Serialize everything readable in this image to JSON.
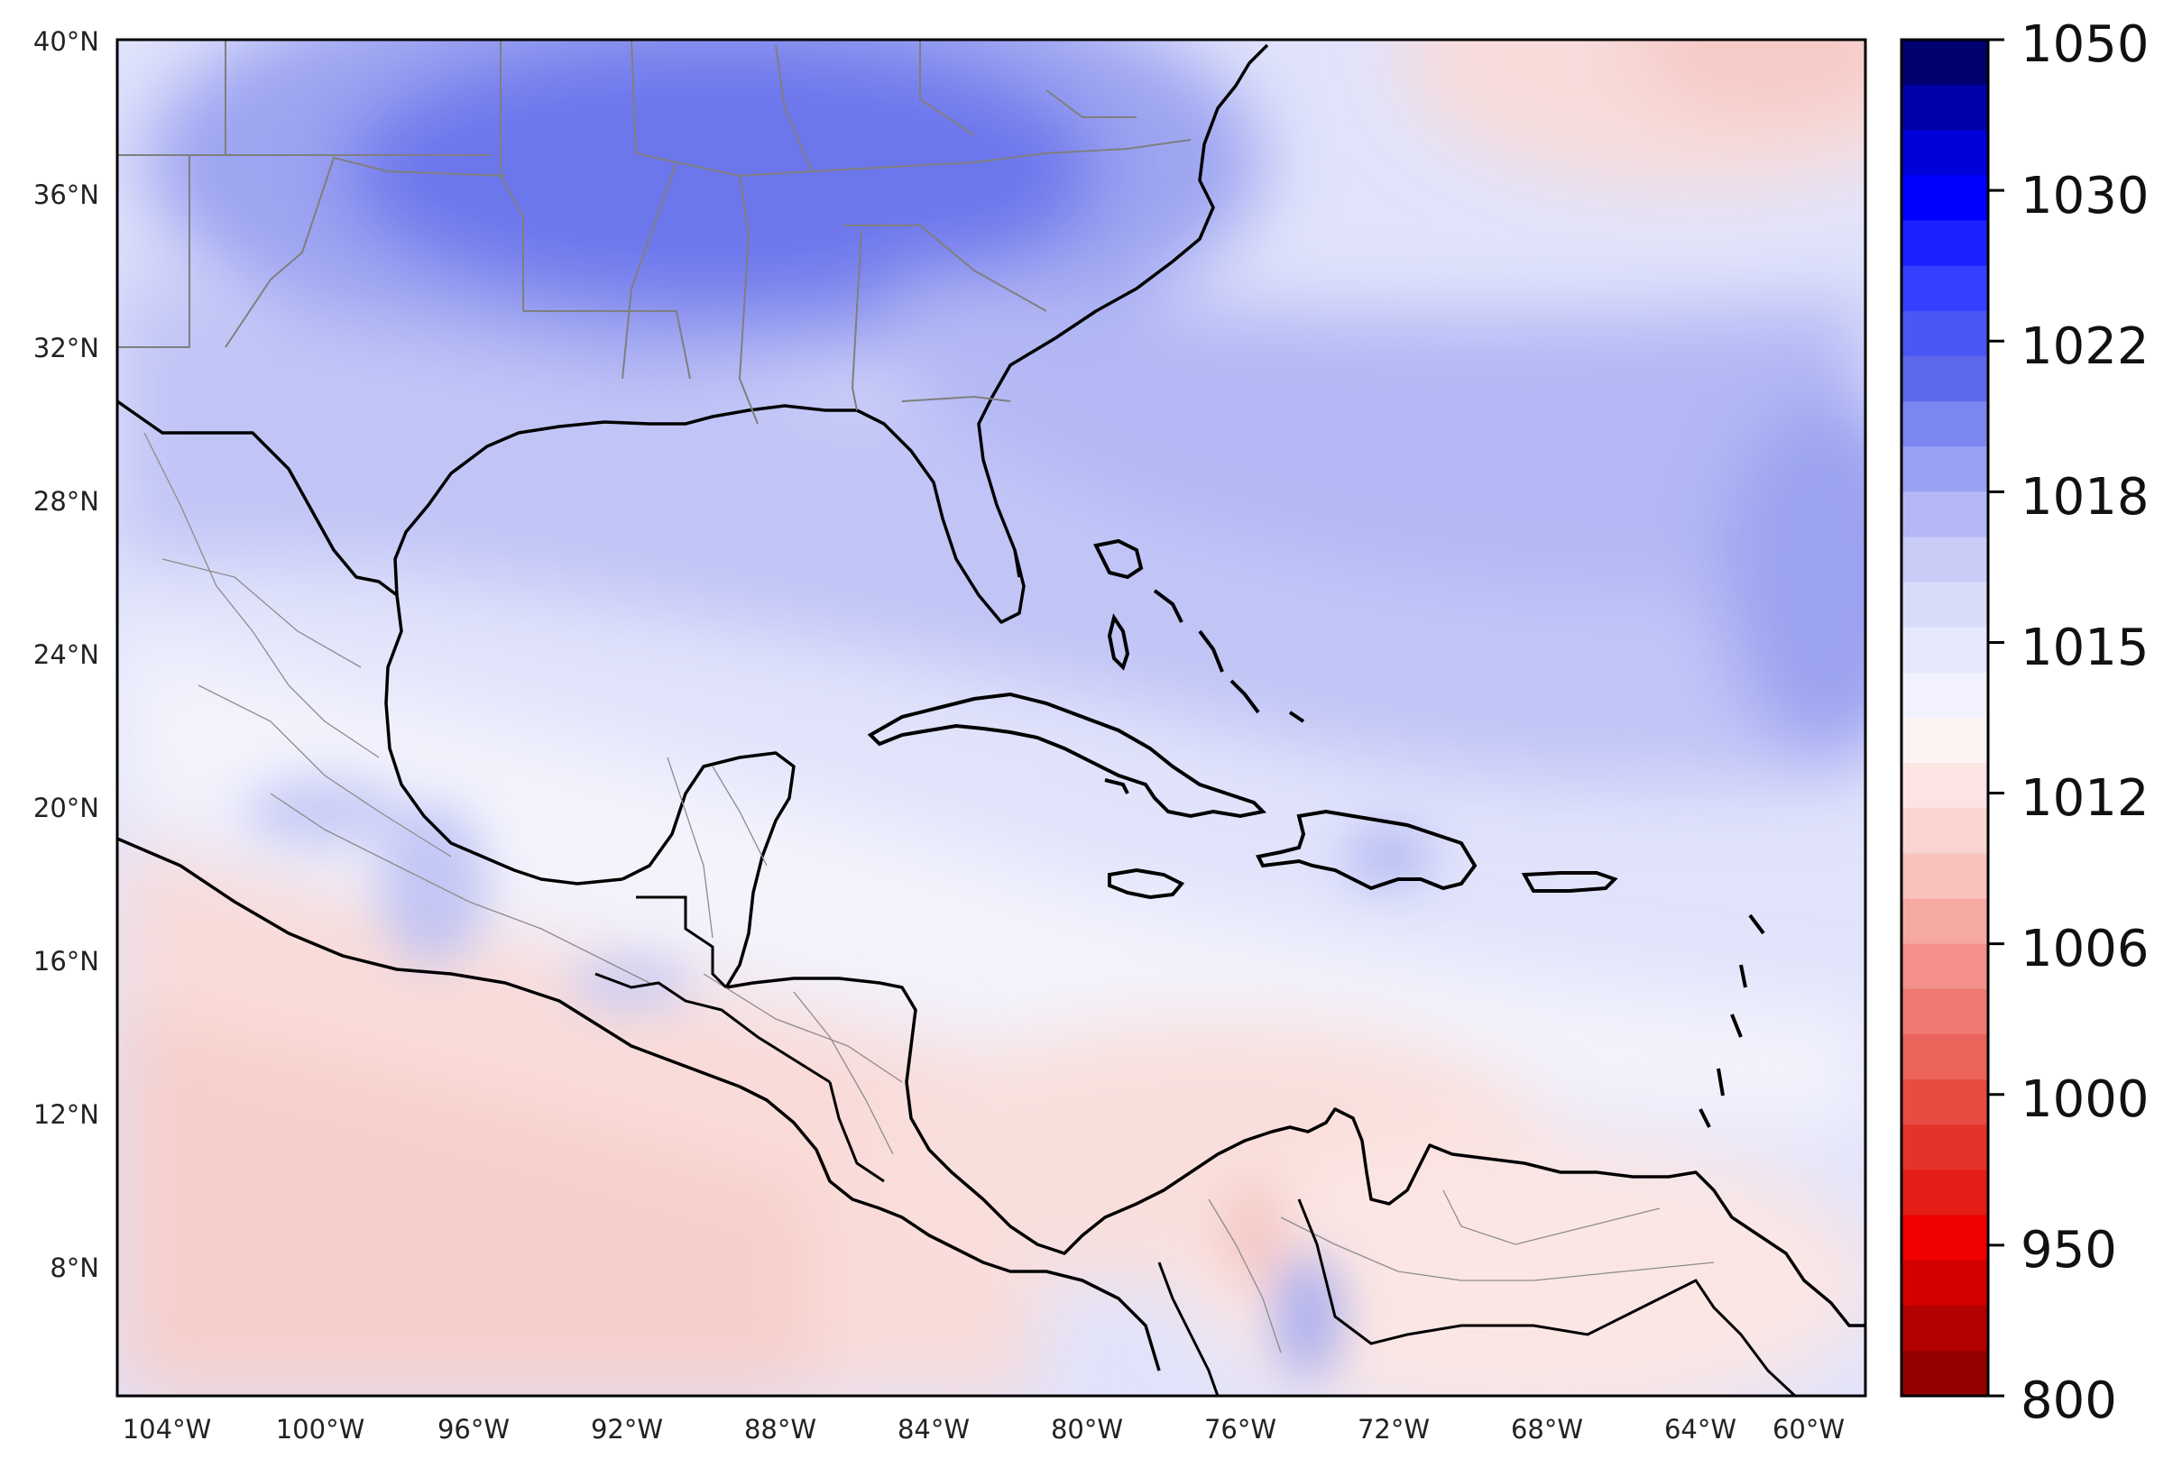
{
  "map": {
    "lat_labels": [
      "40°N",
      "36°N",
      "32°N",
      "28°N",
      "24°N",
      "20°N",
      "16°N",
      "12°N",
      "8°N"
    ],
    "lon_labels": [
      "104°W",
      "100°W",
      "96°W",
      "92°W",
      "88°W",
      "84°W",
      "80°W",
      "76°W",
      "72°W",
      "68°W",
      "64°W",
      "60°W"
    ],
    "extent": {
      "lon_min": -105.5,
      "lon_max": -57.5,
      "lat_min": 5,
      "lat_max": 40
    }
  },
  "colorbar": {
    "tick_labels": [
      "1050",
      "1030",
      "1022",
      "1018",
      "1015",
      "1012",
      "1006",
      "1000",
      "950",
      "800"
    ],
    "colors": [
      "#00006e",
      "#0000a8",
      "#0000d8",
      "#0000ff",
      "#1a22ff",
      "#3440ff",
      "#4a57f5",
      "#5d68ec",
      "#7c86f0",
      "#9aa1f2",
      "#b3b8f5",
      "#c8ccf7",
      "#d9dcf9",
      "#e6e8fb",
      "#f1f2fd",
      "#fbf4f3",
      "#fce4e2",
      "#fad4d0",
      "#f8c2bd",
      "#f6a9a3",
      "#f39089",
      "#f07a72",
      "#ec635b",
      "#e84b42",
      "#e5332a",
      "#e21e16",
      "#f00000",
      "#d40000",
      "#b30000",
      "#950000"
    ]
  }
}
